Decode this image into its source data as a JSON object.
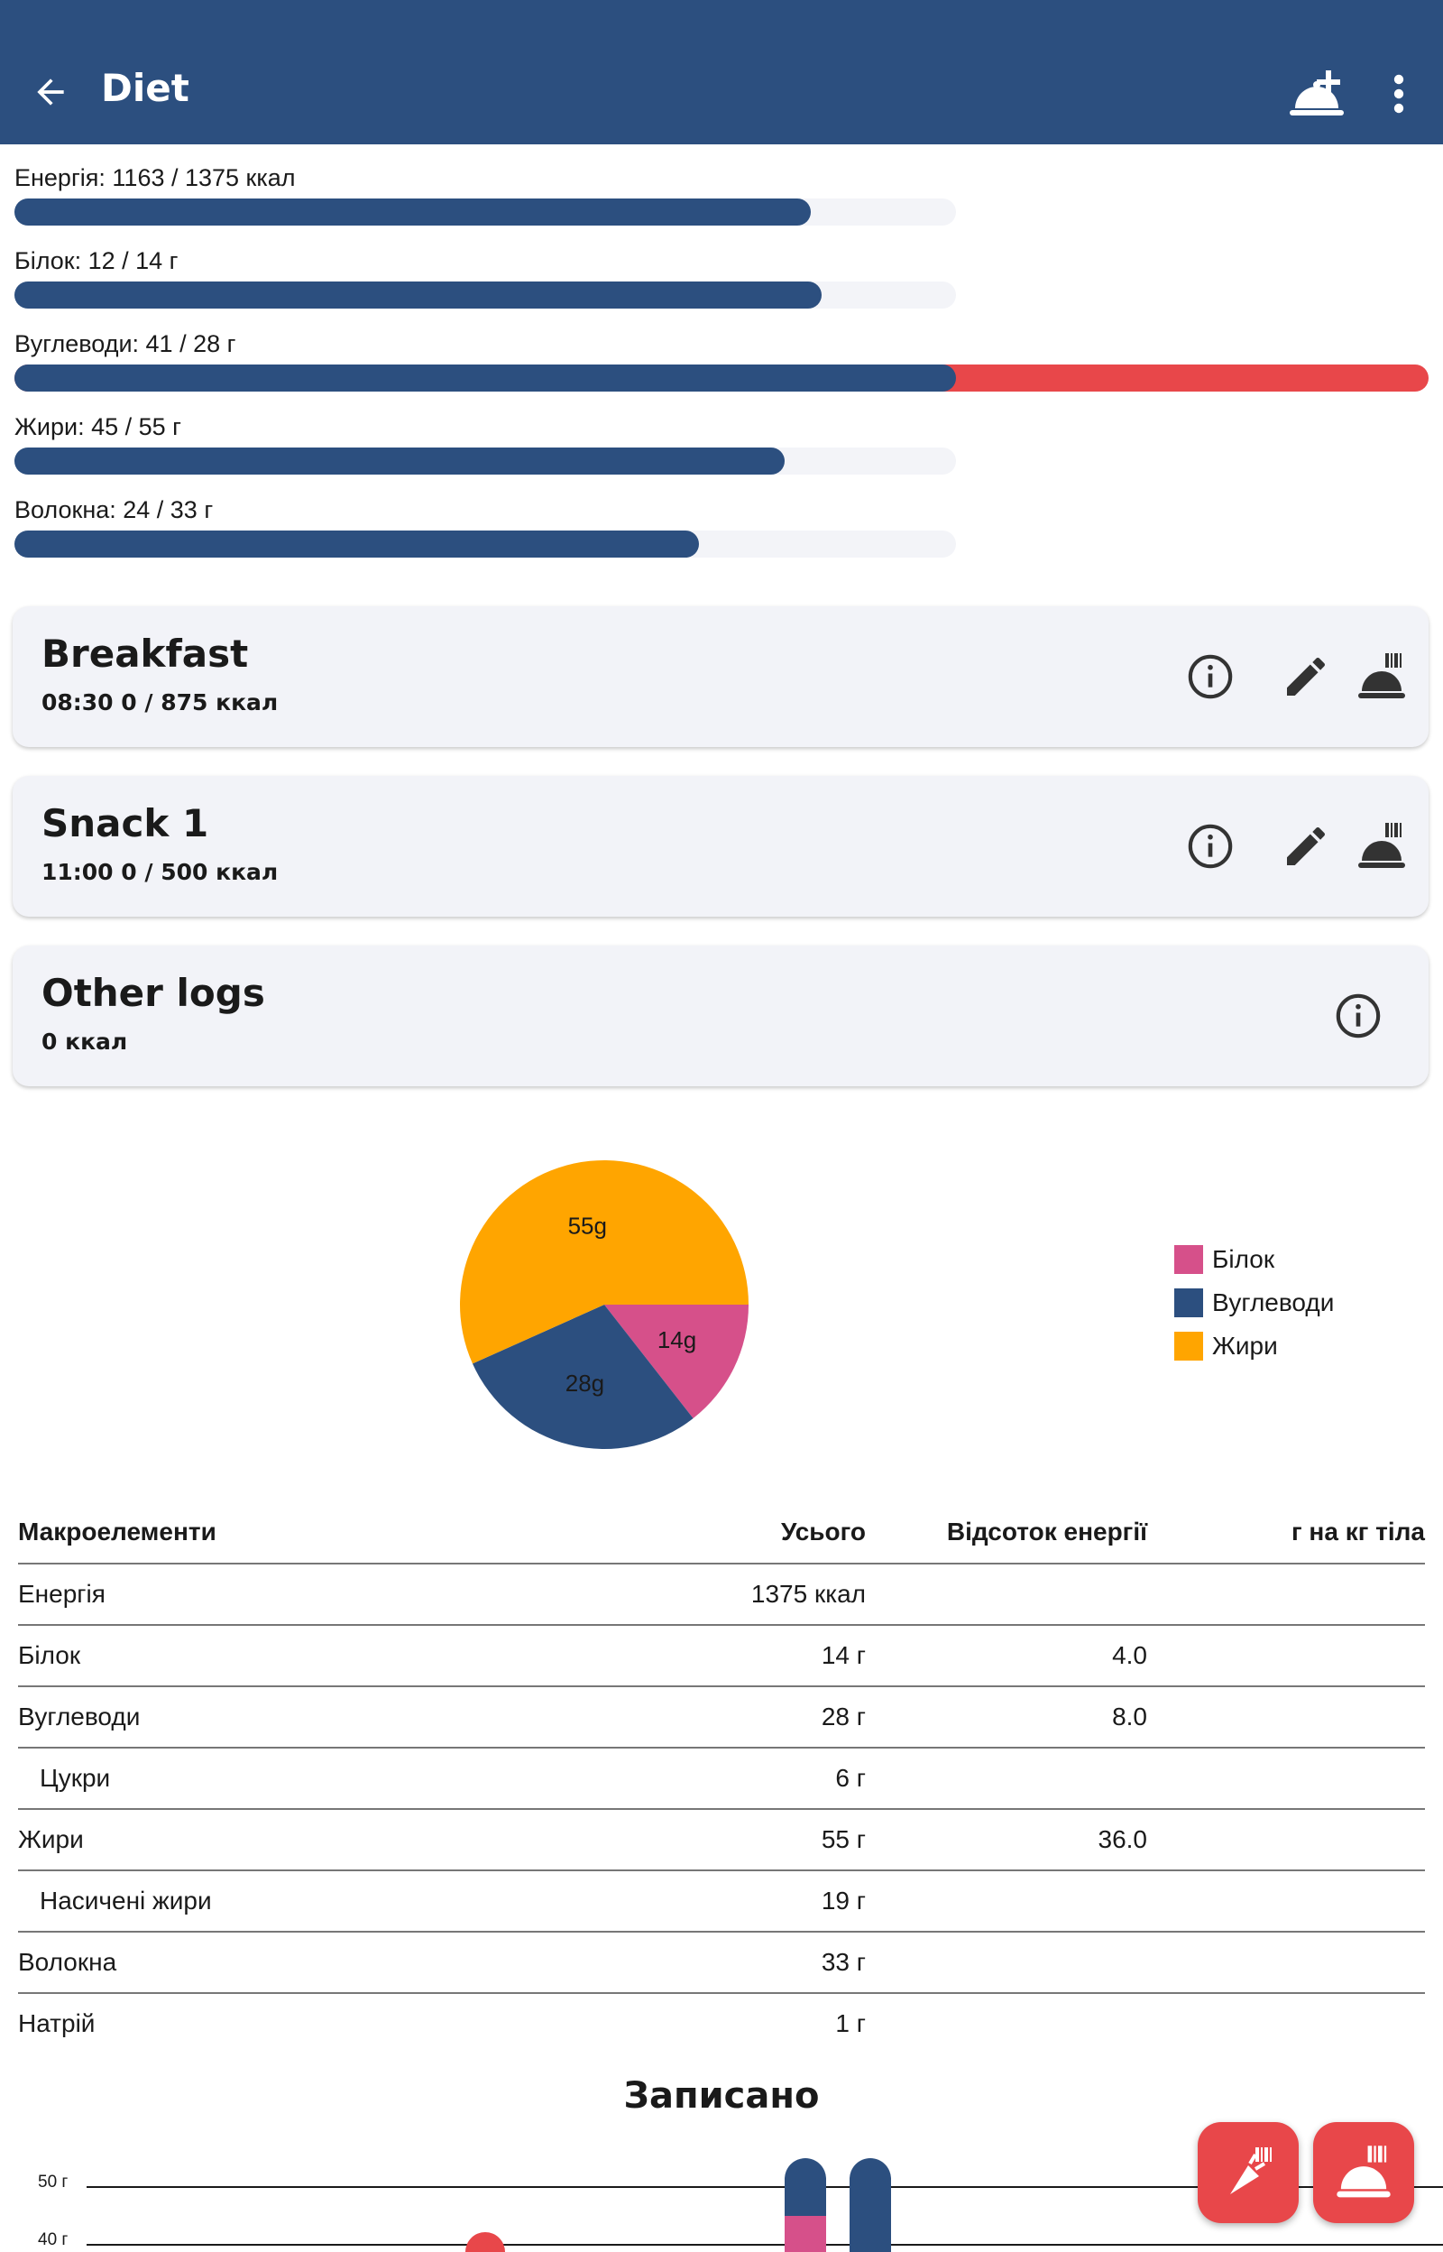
{
  "appbar": {
    "title": "Diet",
    "back_icon": "arrow-left-icon",
    "add_icon": "add-meal-icon",
    "menu_icon": "more-vert-icon"
  },
  "macros": [
    {
      "label": "Енергія: 1163 / 1375 ккал",
      "value": 1163,
      "target": 1375
    },
    {
      "label": "Білок: 12 / 14 г",
      "value": 12,
      "target": 14
    },
    {
      "label": "Вуглеводи: 41 / 28 г",
      "value": 41,
      "target": 28
    },
    {
      "label": "Жири: 45 / 55 г",
      "value": 45,
      "target": 55
    },
    {
      "label": "Волокна: 24 / 33 г",
      "value": 24,
      "target": 33
    }
  ],
  "meals": [
    {
      "title": "Breakfast",
      "subtitle": "08:30   0 / 875 ккал"
    },
    {
      "title": "Snack 1",
      "subtitle": "11:00   0 / 500 ккал"
    },
    {
      "title": "Other logs",
      "subtitle": "0 ккал"
    }
  ],
  "colors": {
    "primary": "#2c4f7f",
    "accent": "#e8474a",
    "protein": "#d6508a",
    "carbs": "#2c4f7f",
    "fat": "#ffa500",
    "card": "#f2f3f8"
  },
  "pie": {
    "labels": [
      "14g",
      "28g",
      "55g"
    ],
    "legend": [
      "Білок",
      "Вуглеводи",
      "Жири"
    ],
    "values": [
      14,
      28,
      55
    ]
  },
  "table": {
    "headers": [
      "Макроелементи",
      "Усього",
      "Відсоток енергії",
      "г на кг тіла"
    ],
    "rows": [
      [
        "Енергія",
        "1375 ккал",
        "",
        ""
      ],
      [
        "Білок",
        "14 г",
        "4.0",
        ""
      ],
      [
        "Вуглеводи",
        "28 г",
        "8.0",
        ""
      ],
      [
        "Цукри",
        "6 г",
        "",
        ""
      ],
      [
        "Жири",
        "55 г",
        "36.0",
        ""
      ],
      [
        "Насичені жири",
        "19 г",
        "",
        ""
      ],
      [
        "Волокна",
        "33 г",
        "",
        ""
      ],
      [
        "Натрій",
        "1 г",
        "",
        ""
      ]
    ]
  },
  "recorded": {
    "title": "Записано",
    "y_ticks": [
      "50 г",
      "40 г"
    ]
  },
  "fabs": {
    "food_icon": "carrot-barcode-icon",
    "meal_icon": "meal-barcode-icon"
  }
}
